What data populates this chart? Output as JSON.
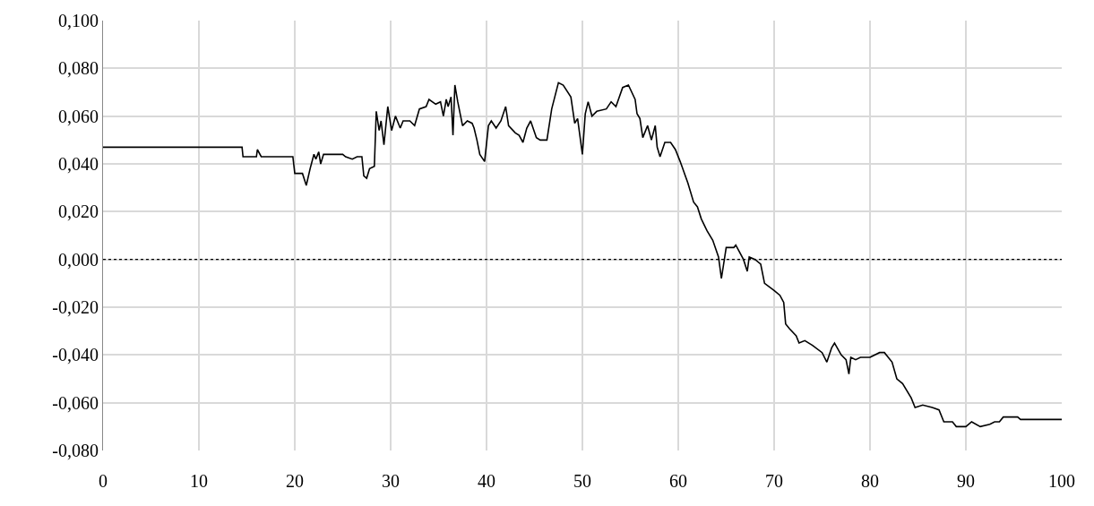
{
  "chart_data": {
    "type": "line",
    "x": [
      0,
      14.5,
      14.6,
      16,
      16.1,
      16.5,
      19.8,
      20,
      20.8,
      21.2,
      21.6,
      22,
      22.2,
      22.5,
      22.7,
      23,
      25,
      25.3,
      26,
      26.5,
      27,
      27.2,
      27.5,
      27.8,
      28.3,
      28.5,
      28.8,
      29,
      29.3,
      29.7,
      30.1,
      30.5,
      31,
      31.3,
      32,
      32.5,
      33,
      33.7,
      34,
      34.7,
      35.2,
      35.5,
      35.8,
      36,
      36.3,
      36.5,
      36.7,
      37,
      37.5,
      38,
      38.5,
      38.7,
      39,
      39.3,
      39.8,
      40.2,
      40.5,
      41,
      41.5,
      42,
      42.3,
      43,
      43.4,
      43.8,
      44.2,
      44.6,
      45.2,
      45.6,
      46.3,
      46.8,
      47.5,
      48,
      48.8,
      49.2,
      49.5,
      50,
      50.3,
      50.6,
      51,
      51.5,
      52.5,
      53,
      53.5,
      54.2,
      54.8,
      55.5,
      55.7,
      56,
      56.3,
      56.8,
      57.2,
      57.6,
      57.8,
      58.1,
      58.6,
      59.2,
      59.7,
      60.2,
      61,
      61.6,
      62,
      62.4,
      63,
      63.6,
      64.2,
      64.5,
      65,
      65.8,
      66,
      66.8,
      67.2,
      67.4,
      68,
      68.6,
      69,
      70,
      70.6,
      71,
      71.2,
      71.6,
      72.3,
      72.6,
      73.2,
      74,
      75,
      75.5,
      76,
      76.3,
      77,
      77.5,
      77.8,
      78,
      78.5,
      79,
      80,
      81,
      81.5,
      82.3,
      82.8,
      83.4,
      84.3,
      84.7,
      85.5,
      86.5,
      87.2,
      87.7,
      88.6,
      89,
      90,
      90.6,
      91.5,
      92.5,
      93,
      93.5,
      93.9,
      95.4,
      95.7,
      100
    ],
    "series": [
      {
        "color": "#000000",
        "values": [
          0.047,
          0.047,
          0.043,
          0.043,
          0.046,
          0.043,
          0.043,
          0.036,
          0.036,
          0.031,
          0.038,
          0.044,
          0.042,
          0.045,
          0.04,
          0.044,
          0.044,
          0.043,
          0.042,
          0.043,
          0.043,
          0.035,
          0.034,
          0.038,
          0.039,
          0.062,
          0.054,
          0.058,
          0.048,
          0.064,
          0.054,
          0.06,
          0.055,
          0.058,
          0.058,
          0.056,
          0.063,
          0.064,
          0.067,
          0.065,
          0.066,
          0.06,
          0.067,
          0.064,
          0.068,
          0.052,
          0.073,
          0.066,
          0.056,
          0.058,
          0.057,
          0.055,
          0.05,
          0.044,
          0.041,
          0.056,
          0.058,
          0.055,
          0.058,
          0.064,
          0.056,
          0.053,
          0.052,
          0.049,
          0.055,
          0.058,
          0.051,
          0.05,
          0.05,
          0.063,
          0.074,
          0.073,
          0.068,
          0.057,
          0.059,
          0.044,
          0.061,
          0.066,
          0.06,
          0.062,
          0.063,
          0.066,
          0.064,
          0.072,
          0.073,
          0.067,
          0.061,
          0.059,
          0.051,
          0.056,
          0.05,
          0.056,
          0.047,
          0.043,
          0.049,
          0.049,
          0.046,
          0.041,
          0.032,
          0.024,
          0.022,
          0.017,
          0.012,
          0.008,
          0.001,
          -0.008,
          0.005,
          0.005,
          0.006,
          0.0,
          -0.005,
          0.001,
          0.0,
          -0.002,
          -0.01,
          -0.013,
          -0.015,
          -0.018,
          -0.027,
          -0.029,
          -0.032,
          -0.035,
          -0.034,
          -0.036,
          -0.039,
          -0.043,
          -0.037,
          -0.035,
          -0.04,
          -0.042,
          -0.048,
          -0.041,
          -0.042,
          -0.041,
          -0.041,
          -0.039,
          -0.039,
          -0.043,
          -0.05,
          -0.052,
          -0.058,
          -0.062,
          -0.061,
          -0.062,
          -0.063,
          -0.068,
          -0.068,
          -0.07,
          -0.07,
          -0.068,
          -0.07,
          -0.069,
          -0.068,
          -0.068,
          -0.066,
          -0.066,
          -0.067,
          -0.067
        ]
      }
    ],
    "xlim": [
      0,
      100
    ],
    "xticks": [
      0,
      10,
      20,
      30,
      40,
      50,
      60,
      70,
      80,
      90,
      100
    ],
    "ylim": [
      -0.08,
      0.1
    ],
    "yticks": [
      {
        "value": -0.08,
        "label": "-0,080"
      },
      {
        "value": -0.06,
        "label": "-0,060"
      },
      {
        "value": -0.04,
        "label": "-0,040"
      },
      {
        "value": -0.02,
        "label": "-0,020"
      },
      {
        "value": 0,
        "label": "0,000"
      },
      {
        "value": 0.02,
        "label": "0,020"
      },
      {
        "value": 0.04,
        "label": "0,040"
      },
      {
        "value": 0.06,
        "label": "0,060"
      },
      {
        "value": 0.08,
        "label": "0,080"
      },
      {
        "value": 0.1,
        "label": "0,100"
      }
    ],
    "ref_lines": [
      {
        "axis": "y",
        "value": 0,
        "color": "#000000",
        "line_style": "dotted"
      }
    ],
    "grid": true,
    "line_style": "solid",
    "marker": "none"
  }
}
